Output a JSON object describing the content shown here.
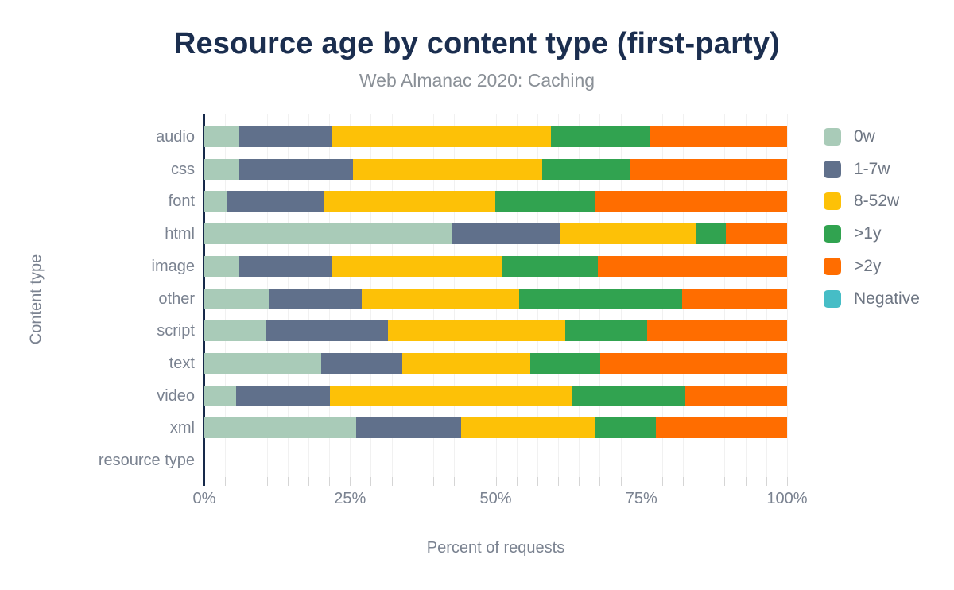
{
  "header": {
    "title_color": "#1b2e4f",
    "subtitle_color": "#8a9097"
  },
  "axis": {
    "label_color": "#7a8290",
    "line_color": "#16294a",
    "gridline_color": "#f1f1f1",
    "tick_color": "#d5d5d5"
  },
  "legend": {
    "label_color": "#6e7683"
  },
  "chart_data": {
    "type": "bar",
    "orientation": "horizontal",
    "stacked": true,
    "title": "Resource age by content type (first-party)",
    "subtitle": "Web Almanac 2020: Caching",
    "xlabel": "Percent of requests",
    "ylabel": "Content type",
    "xlim": [
      0,
      100
    ],
    "x_ticks": [
      {
        "label": "0%",
        "value": 0
      },
      {
        "label": "25%",
        "value": 25
      },
      {
        "label": "50%",
        "value": 50
      },
      {
        "label": "75%",
        "value": 75
      },
      {
        "label": "100%",
        "value": 100
      }
    ],
    "grid": "minor-vertical-28",
    "legend_position": "right",
    "categories": [
      "audio",
      "css",
      "font",
      "html",
      "image",
      "other",
      "script",
      "text",
      "video",
      "xml",
      "resource type"
    ],
    "series": [
      {
        "name": "0w",
        "color": "#a9cbb8",
        "values": [
          6,
          6,
          4,
          42.5,
          6,
          11,
          10.5,
          20,
          5.5,
          26,
          0
        ]
      },
      {
        "name": "1-7w",
        "color": "#60708b",
        "values": [
          16,
          19.5,
          16.5,
          18.5,
          16,
          16,
          21,
          14,
          16,
          18,
          0
        ]
      },
      {
        "name": "8-52w",
        "color": "#fdc107",
        "values": [
          37.5,
          32.5,
          29.5,
          23.5,
          29,
          27,
          30.5,
          22,
          41.5,
          23,
          0
        ]
      },
      {
        "name": ">1y",
        "color": "#31a350",
        "values": [
          17,
          15,
          17,
          5,
          16.5,
          28,
          14,
          12,
          19.5,
          10.5,
          0
        ]
      },
      {
        "name": ">2y",
        "color": "#ff6d00",
        "values": [
          23.5,
          27,
          33,
          10.5,
          32.5,
          18,
          24,
          32,
          17.5,
          22.5,
          0
        ]
      },
      {
        "name": "Negative",
        "color": "#46bdc6",
        "values": [
          0,
          0,
          0,
          0,
          0,
          0,
          0,
          0,
          0,
          0,
          0
        ]
      }
    ]
  }
}
